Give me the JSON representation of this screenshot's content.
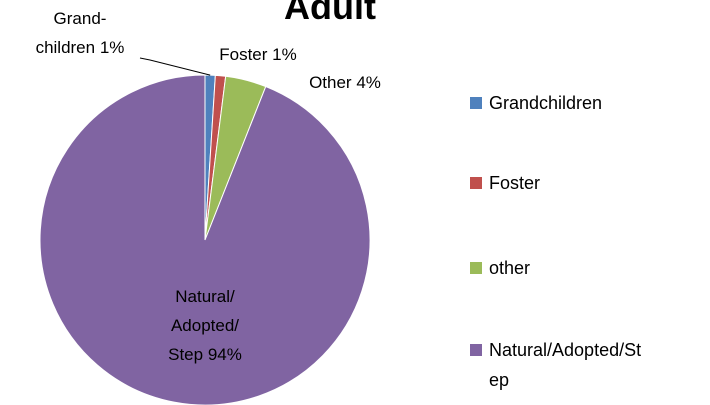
{
  "chart_data": {
    "type": "pie",
    "title": "Adult",
    "categories": [
      "Grandchildren",
      "Foster",
      "other",
      "Natural/Adopted/Step"
    ],
    "label_names": [
      "Grand-\nchildren",
      "Foster",
      "Other",
      "Natural/\nAdopted/\nStep"
    ],
    "values": [
      1,
      1,
      4,
      94
    ],
    "value_labels": [
      "1%",
      "1%",
      "4%",
      "94%"
    ],
    "colors": [
      "#4f81bd",
      "#c0504d",
      "#9bbb59",
      "#8064a2"
    ],
    "legend": "right"
  }
}
